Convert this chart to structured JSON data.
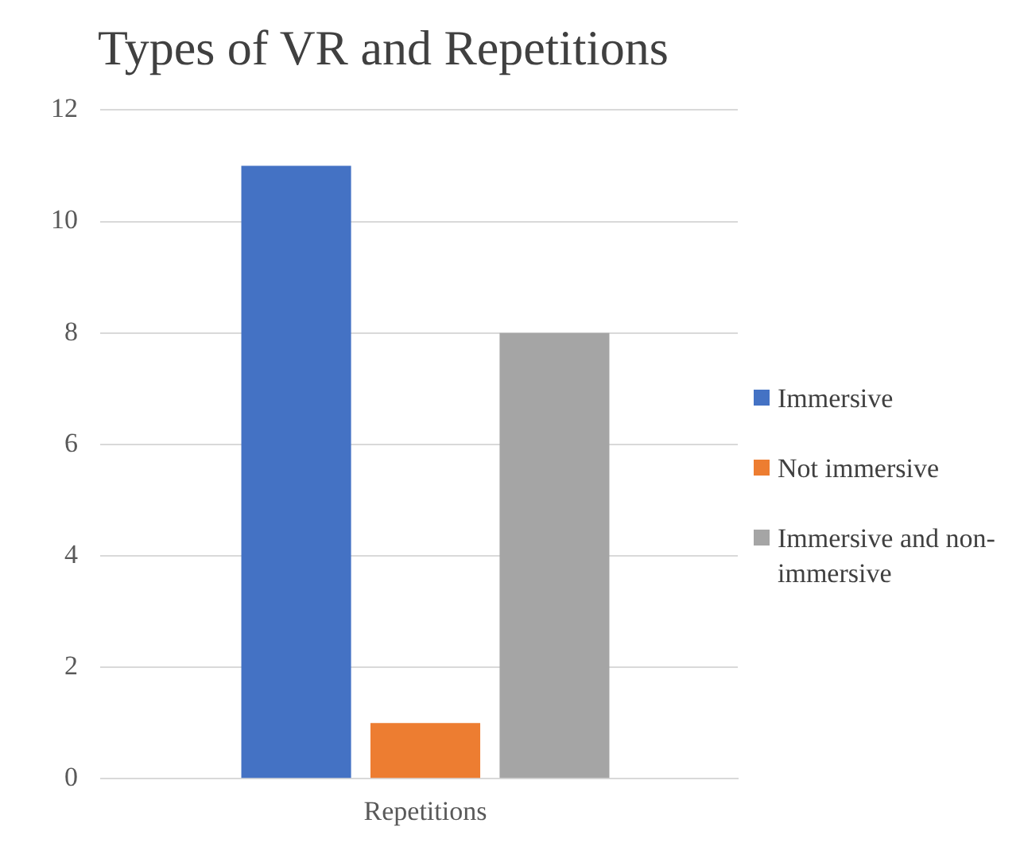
{
  "chart_data": {
    "type": "bar",
    "title": "Types of VR and Repetitions",
    "categories": [
      "Repetitions"
    ],
    "series": [
      {
        "name": "Immersive",
        "color": "#4472c4",
        "values": [
          11
        ]
      },
      {
        "name": "Not immersive",
        "color": "#ed7d31",
        "values": [
          1
        ]
      },
      {
        "name": "Immersive and non-immersive",
        "color": "#a5a5a5",
        "values": [
          8
        ]
      }
    ],
    "ylim": [
      0,
      12
    ],
    "yticks": [
      0,
      2,
      4,
      6,
      8,
      10,
      12
    ],
    "grid": "y",
    "legend": "right"
  }
}
